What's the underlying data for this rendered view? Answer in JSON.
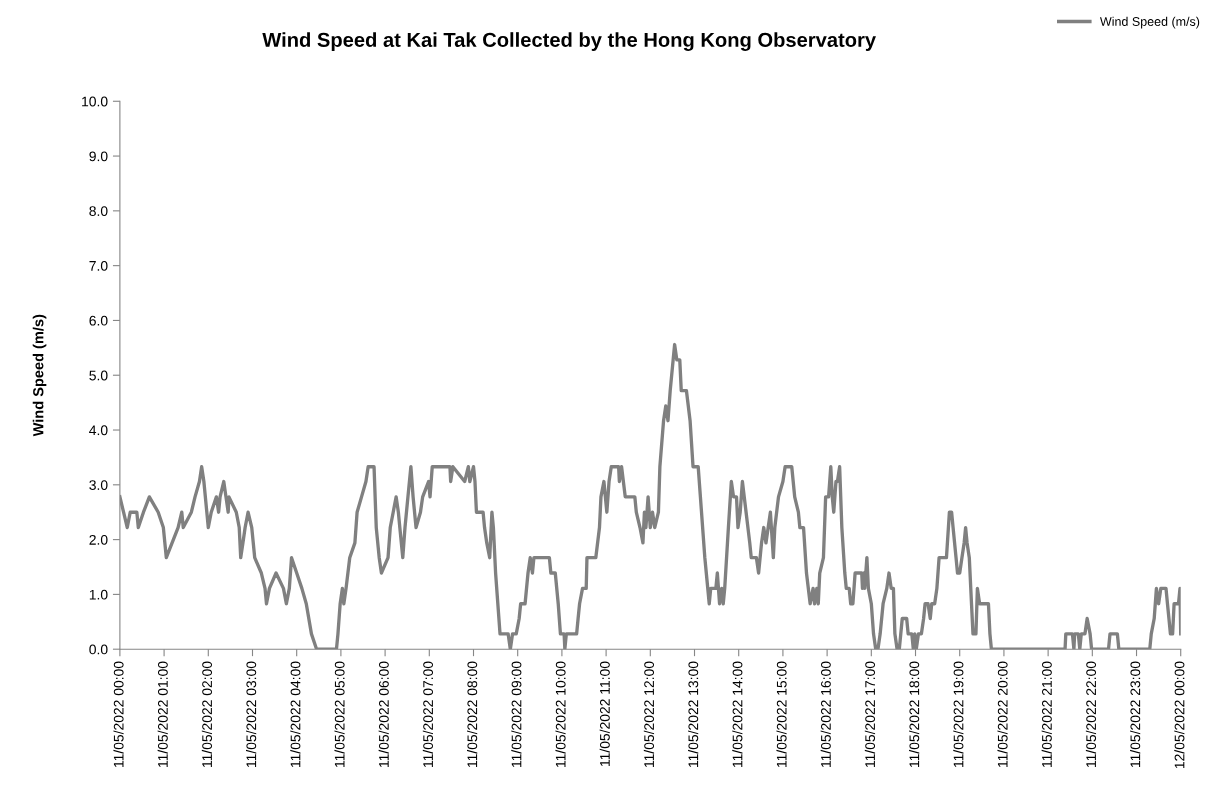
{
  "chart_data": {
    "type": "line",
    "title": "Wind Speed at Kai Tak Collected by the Hong Kong Observatory",
    "ylabel": "Wind Speed (m/s)",
    "xlim": [
      "2022-05-11T00:00",
      "2022-05-12T00:00"
    ],
    "ylim": [
      0,
      10
    ],
    "xticks": [
      {
        "value": "2022-05-11T00:00",
        "label": "11/05/2022 00:00"
      },
      {
        "value": "2022-05-11T01:00",
        "label": "11/05/2022 01:00"
      },
      {
        "value": "2022-05-11T02:00",
        "label": "11/05/2022 02:00"
      },
      {
        "value": "2022-05-11T03:00",
        "label": "11/05/2022 03:00"
      },
      {
        "value": "2022-05-11T04:00",
        "label": "11/05/2022 04:00"
      },
      {
        "value": "2022-05-11T05:00",
        "label": "11/05/2022 05:00"
      },
      {
        "value": "2022-05-11T06:00",
        "label": "11/05/2022 06:00"
      },
      {
        "value": "2022-05-11T07:00",
        "label": "11/05/2022 07:00"
      },
      {
        "value": "2022-05-11T08:00",
        "label": "11/05/2022 08:00"
      },
      {
        "value": "2022-05-11T09:00",
        "label": "11/05/2022 09:00"
      },
      {
        "value": "2022-05-11T10:00",
        "label": "11/05/2022 10:00"
      },
      {
        "value": "2022-05-11T11:00",
        "label": "11/05/2022 11:00"
      },
      {
        "value": "2022-05-11T12:00",
        "label": "11/05/2022 12:00"
      },
      {
        "value": "2022-05-11T13:00",
        "label": "11/05/2022 13:00"
      },
      {
        "value": "2022-05-11T14:00",
        "label": "11/05/2022 14:00"
      },
      {
        "value": "2022-05-11T15:00",
        "label": "11/05/2022 15:00"
      },
      {
        "value": "2022-05-11T16:00",
        "label": "11/05/2022 16:00"
      },
      {
        "value": "2022-05-11T17:00",
        "label": "11/05/2022 17:00"
      },
      {
        "value": "2022-05-11T18:00",
        "label": "11/05/2022 18:00"
      },
      {
        "value": "2022-05-11T19:00",
        "label": "11/05/2022 19:00"
      },
      {
        "value": "2022-05-11T20:00",
        "label": "11/05/2022 20:00"
      },
      {
        "value": "2022-05-11T21:00",
        "label": "11/05/2022 21:00"
      },
      {
        "value": "2022-05-11T22:00",
        "label": "11/05/2022 22:00"
      },
      {
        "value": "2022-05-11T23:00",
        "label": "11/05/2022 23:00"
      },
      {
        "value": "2022-05-12T00:00",
        "label": "12/05/2022 00:00"
      }
    ],
    "yticks": [
      {
        "value": 0,
        "label": "0.0"
      },
      {
        "value": 1,
        "label": "1.0"
      },
      {
        "value": 2,
        "label": "2.0"
      },
      {
        "value": 3,
        "label": "3.0"
      },
      {
        "value": 4,
        "label": "4.0"
      },
      {
        "value": 5,
        "label": "5.0"
      },
      {
        "value": 6,
        "label": "6.0"
      },
      {
        "value": 7,
        "label": "7.0"
      },
      {
        "value": 8,
        "label": "8.0"
      },
      {
        "value": 9,
        "label": "9.0"
      },
      {
        "value": 10,
        "label": "10.0"
      }
    ],
    "grid": false,
    "legend": "top right",
    "marker": "none",
    "line_style": "solid",
    "series": [
      {
        "name": "Wind Speed (m/s)",
        "color": "#808080",
        "x": [
          "2022-05-11T00:00",
          "2022-05-11T00:05",
          "2022-05-11T00:10",
          "2022-05-11T00:14",
          "2022-05-11T00:23",
          "2022-05-11T00:25",
          "2022-05-11T00:32",
          "2022-05-11T00:40",
          "2022-05-11T00:52",
          "2022-05-11T00:59",
          "2022-05-11T01:03",
          "2022-05-11T01:19",
          "2022-05-11T01:24",
          "2022-05-11T01:26",
          "2022-05-11T01:37",
          "2022-05-11T01:42",
          "2022-05-11T01:48",
          "2022-05-11T01:51",
          "2022-05-11T01:54",
          "2022-05-11T01:58",
          "2022-05-11T02:00",
          "2022-05-11T02:04",
          "2022-05-11T02:11",
          "2022-05-11T02:14",
          "2022-05-11T02:16",
          "2022-05-11T02:21",
          "2022-05-11T02:24",
          "2022-05-11T02:27",
          "2022-05-11T02:28",
          "2022-05-11T02:38",
          "2022-05-11T02:42",
          "2022-05-11T02:44",
          "2022-05-11T02:47",
          "2022-05-11T02:50",
          "2022-05-11T02:54",
          "2022-05-11T02:59",
          "2022-05-11T03:03",
          "2022-05-11T03:12",
          "2022-05-11T03:17",
          "2022-05-11T03:19",
          "2022-05-11T03:23",
          "2022-05-11T03:32",
          "2022-05-11T03:42",
          "2022-05-11T03:46",
          "2022-05-11T03:50",
          "2022-05-11T03:53",
          "2022-05-11T04:00",
          "2022-05-11T04:07",
          "2022-05-11T04:13",
          "2022-05-11T04:20",
          "2022-05-11T04:27",
          "2022-05-11T04:54",
          "2022-05-11T04:56",
          "2022-05-11T04:59",
          "2022-05-11T05:02",
          "2022-05-11T05:04",
          "2022-05-11T05:07",
          "2022-05-11T05:12",
          "2022-05-11T05:19",
          "2022-05-11T05:22",
          "2022-05-11T05:28",
          "2022-05-11T05:34",
          "2022-05-11T05:37",
          "2022-05-11T05:45",
          "2022-05-11T05:48",
          "2022-05-11T05:52",
          "2022-05-11T05:55",
          "2022-05-11T06:04",
          "2022-05-11T06:07",
          "2022-05-11T06:11",
          "2022-05-11T06:15",
          "2022-05-11T06:18",
          "2022-05-11T06:20",
          "2022-05-11T06:24",
          "2022-05-11T06:27",
          "2022-05-11T06:31",
          "2022-05-11T06:35",
          "2022-05-11T06:38",
          "2022-05-11T06:42",
          "2022-05-11T06:48",
          "2022-05-11T06:51",
          "2022-05-11T06:59",
          "2022-05-11T07:01",
          "2022-05-11T07:04",
          "2022-05-11T07:28",
          "2022-05-11T07:29",
          "2022-05-11T07:32",
          "2022-05-11T07:48",
          "2022-05-11T07:53",
          "2022-05-11T07:55",
          "2022-05-11T08:00",
          "2022-05-11T08:02",
          "2022-05-11T08:04",
          "2022-05-11T08:13",
          "2022-05-11T08:15",
          "2022-05-11T08:18",
          "2022-05-11T08:22",
          "2022-05-11T08:25",
          "2022-05-11T08:27",
          "2022-05-11T08:30",
          "2022-05-11T08:36",
          "2022-05-11T08:47",
          "2022-05-11T08:50",
          "2022-05-11T08:53",
          "2022-05-11T08:58",
          "2022-05-11T09:02",
          "2022-05-11T09:04",
          "2022-05-11T09:10",
          "2022-05-11T09:14",
          "2022-05-11T09:17",
          "2022-05-11T09:20",
          "2022-05-11T09:22",
          "2022-05-11T09:43",
          "2022-05-11T09:45",
          "2022-05-11T09:51",
          "2022-05-11T09:55",
          "2022-05-11T09:58",
          "2022-05-11T10:03",
          "2022-05-11T10:04",
          "2022-05-11T10:06",
          "2022-05-11T10:20",
          "2022-05-11T10:22",
          "2022-05-11T10:24",
          "2022-05-11T10:28",
          "2022-05-11T10:33",
          "2022-05-11T10:34",
          "2022-05-11T10:46",
          "2022-05-11T10:51",
          "2022-05-11T10:53",
          "2022-05-11T10:57",
          "2022-05-11T11:01",
          "2022-05-11T11:04",
          "2022-05-11T11:07",
          "2022-05-11T11:17",
          "2022-05-11T11:18",
          "2022-05-11T11:21",
          "2022-05-11T11:26",
          "2022-05-11T11:32",
          "2022-05-11T11:39",
          "2022-05-11T11:41",
          "2022-05-11T11:46",
          "2022-05-11T11:50",
          "2022-05-11T11:52",
          "2022-05-11T11:54",
          "2022-05-11T11:57",
          "2022-05-11T12:00",
          "2022-05-11T12:03",
          "2022-05-11T12:06",
          "2022-05-11T12:11",
          "2022-05-11T12:13",
          "2022-05-11T12:18",
          "2022-05-11T12:21",
          "2022-05-11T12:24",
          "2022-05-11T12:27",
          "2022-05-11T12:31",
          "2022-05-11T12:33",
          "2022-05-11T12:36",
          "2022-05-11T12:40",
          "2022-05-11T12:42",
          "2022-05-11T12:49",
          "2022-05-11T12:54",
          "2022-05-11T12:58",
          "2022-05-11T13:05",
          "2022-05-11T13:08",
          "2022-05-11T13:14",
          "2022-05-11T13:16",
          "2022-05-11T13:20",
          "2022-05-11T13:22",
          "2022-05-11T13:29",
          "2022-05-11T13:31",
          "2022-05-11T13:34",
          "2022-05-11T13:37",
          "2022-05-11T13:39",
          "2022-05-11T13:41",
          "2022-05-11T13:46",
          "2022-05-11T13:50",
          "2022-05-11T13:53",
          "2022-05-11T13:57",
          "2022-05-11T13:59",
          "2022-05-11T14:02",
          "2022-05-11T14:05",
          "2022-05-11T14:10",
          "2022-05-11T14:15",
          "2022-05-11T14:17",
          "2022-05-11T14:24",
          "2022-05-11T14:27",
          "2022-05-11T14:31",
          "2022-05-11T14:34",
          "2022-05-11T14:37",
          "2022-05-11T14:40",
          "2022-05-11T14:43",
          "2022-05-11T14:47",
          "2022-05-11T14:49",
          "2022-05-11T14:54",
          "2022-05-11T15:00",
          "2022-05-11T15:03",
          "2022-05-11T15:12",
          "2022-05-11T15:16",
          "2022-05-11T15:21",
          "2022-05-11T15:23",
          "2022-05-11T15:28",
          "2022-05-11T15:32",
          "2022-05-11T15:37",
          "2022-05-11T15:41",
          "2022-05-11T15:43",
          "2022-05-11T15:46",
          "2022-05-11T15:48",
          "2022-05-11T15:50",
          "2022-05-11T15:55",
          "2022-05-11T15:58",
          "2022-05-11T16:02",
          "2022-05-11T16:05",
          "2022-05-11T16:07",
          "2022-05-11T16:09",
          "2022-05-11T16:12",
          "2022-05-11T16:14",
          "2022-05-11T16:17",
          "2022-05-11T16:20",
          "2022-05-11T16:24",
          "2022-05-11T16:26",
          "2022-05-11T16:30",
          "2022-05-11T16:32",
          "2022-05-11T16:35",
          "2022-05-11T16:38",
          "2022-05-11T16:47",
          "2022-05-11T16:48",
          "2022-05-11T16:50",
          "2022-05-11T16:51",
          "2022-05-11T16:54",
          "2022-05-11T16:56",
          "2022-05-11T17:00",
          "2022-05-11T17:03",
          "2022-05-11T17:06",
          "2022-05-11T17:09",
          "2022-05-11T17:12",
          "2022-05-11T17:16",
          "2022-05-11T17:21",
          "2022-05-11T17:24",
          "2022-05-11T17:27",
          "2022-05-11T17:30",
          "2022-05-11T17:32",
          "2022-05-11T17:35",
          "2022-05-11T17:38",
          "2022-05-11T17:40",
          "2022-05-11T17:42",
          "2022-05-11T17:48",
          "2022-05-11T17:50",
          "2022-05-11T17:55",
          "2022-05-11T17:57",
          "2022-05-11T17:59",
          "2022-05-11T18:01",
          "2022-05-11T18:04",
          "2022-05-11T18:08",
          "2022-05-11T18:11",
          "2022-05-11T18:13",
          "2022-05-11T18:17",
          "2022-05-11T18:20",
          "2022-05-11T18:22",
          "2022-05-11T18:26",
          "2022-05-11T18:29",
          "2022-05-11T18:32",
          "2022-05-11T18:42",
          "2022-05-11T18:46",
          "2022-05-11T18:49",
          "2022-05-11T18:51",
          "2022-05-11T18:55",
          "2022-05-11T18:57",
          "2022-05-11T19:00",
          "2022-05-11T19:03",
          "2022-05-11T19:06",
          "2022-05-11T19:08",
          "2022-05-11T19:10",
          "2022-05-11T19:13",
          "2022-05-11T19:16",
          "2022-05-11T19:18",
          "2022-05-11T19:22",
          "2022-05-11T19:24",
          "2022-05-11T19:27",
          "2022-05-11T19:39",
          "2022-05-11T19:41",
          "2022-05-11T19:43",
          "2022-05-11T21:23",
          "2022-05-11T21:24",
          "2022-05-11T21:33",
          "2022-05-11T21:35",
          "2022-05-11T21:36",
          "2022-05-11T21:41",
          "2022-05-11T21:43",
          "2022-05-11T21:45",
          "2022-05-11T21:50",
          "2022-05-11T21:53",
          "2022-05-11T21:57",
          "2022-05-11T21:59",
          "2022-05-11T22:22",
          "2022-05-11T22:24",
          "2022-05-11T22:34",
          "2022-05-11T22:36",
          "2022-05-11T23:18",
          "2022-05-11T23:20",
          "2022-05-11T23:24",
          "2022-05-11T23:27",
          "2022-05-11T23:30",
          "2022-05-11T23:33",
          "2022-05-11T23:40",
          "2022-05-11T23:42",
          "2022-05-11T23:44",
          "2022-05-11T23:46",
          "2022-05-11T23:49",
          "2022-05-11T23:51",
          "2022-05-11T23:57",
          "2022-05-11T23:59",
          "2022-05-12T00:00"
        ],
        "values": [
          2.78,
          2.5,
          2.22,
          2.5,
          2.5,
          2.22,
          2.5,
          2.78,
          2.5,
          2.22,
          1.67,
          2.22,
          2.5,
          2.22,
          2.5,
          2.78,
          3.06,
          3.33,
          3.06,
          2.5,
          2.22,
          2.5,
          2.78,
          2.5,
          2.78,
          3.06,
          2.78,
          2.5,
          2.78,
          2.5,
          2.22,
          1.67,
          1.94,
          2.22,
          2.5,
          2.22,
          1.67,
          1.39,
          1.11,
          0.83,
          1.11,
          1.39,
          1.11,
          0.83,
          1.11,
          1.67,
          1.39,
          1.11,
          0.83,
          0.28,
          0,
          0,
          0.28,
          0.83,
          1.11,
          0.83,
          1.11,
          1.67,
          1.94,
          2.5,
          2.78,
          3.06,
          3.33,
          3.33,
          2.22,
          1.67,
          1.39,
          1.67,
          2.22,
          2.5,
          2.78,
          2.5,
          2.22,
          1.67,
          2.22,
          2.78,
          3.33,
          2.78,
          2.22,
          2.5,
          2.78,
          3.06,
          2.78,
          3.33,
          3.33,
          3.06,
          3.33,
          3.06,
          3.33,
          3.06,
          3.33,
          3.06,
          2.5,
          2.5,
          2.22,
          1.94,
          1.67,
          2.5,
          2.22,
          1.39,
          0.28,
          0.28,
          0,
          0.28,
          0.28,
          0.56,
          0.83,
          0.83,
          1.39,
          1.67,
          1.39,
          1.67,
          1.67,
          1.39,
          1.39,
          0.83,
          0.28,
          0.28,
          0,
          0.28,
          0.28,
          0.56,
          0.83,
          1.11,
          1.11,
          1.67,
          1.67,
          2.22,
          2.78,
          3.06,
          2.5,
          3.06,
          3.33,
          3.33,
          3.06,
          3.33,
          2.78,
          2.78,
          2.78,
          2.5,
          2.22,
          1.94,
          2.5,
          2.22,
          2.78,
          2.22,
          2.5,
          2.22,
          2.5,
          3.33,
          4.17,
          4.44,
          4.17,
          4.72,
          5.28,
          5.56,
          5.28,
          5.28,
          4.72,
          4.72,
          4.17,
          3.33,
          3.33,
          2.78,
          1.67,
          1.39,
          0.83,
          1.11,
          1.11,
          1.39,
          0.83,
          1.11,
          0.83,
          1.11,
          2.22,
          3.06,
          2.78,
          2.78,
          2.22,
          2.5,
          3.06,
          2.5,
          1.94,
          1.67,
          1.67,
          1.39,
          1.94,
          2.22,
          1.94,
          2.22,
          2.5,
          1.67,
          2.22,
          2.78,
          3.06,
          3.33,
          3.33,
          2.78,
          2.5,
          2.22,
          2.22,
          1.39,
          0.83,
          1.11,
          0.83,
          1.11,
          0.83,
          1.39,
          1.67,
          2.78,
          2.78,
          3.33,
          2.78,
          2.5,
          3.06,
          3.06,
          3.33,
          2.22,
          1.39,
          1.11,
          1.11,
          0.83,
          0.83,
          1.39,
          1.39,
          1.11,
          1.39,
          1.11,
          1.67,
          1.11,
          0.83,
          0.28,
          0,
          0,
          0.28,
          0.83,
          1.11,
          1.39,
          1.11,
          1.11,
          0.28,
          0,
          0,
          0.28,
          0.56,
          0.56,
          0.28,
          0.28,
          0,
          0.28,
          0,
          0.28,
          0.28,
          0.56,
          0.83,
          0.83,
          0.56,
          0.83,
          0.83,
          1.11,
          1.67,
          1.67,
          2.5,
          2.5,
          2.22,
          1.67,
          1.39,
          1.39,
          1.67,
          1.94,
          2.22,
          1.94,
          1.67,
          0.83,
          0.28,
          0.28,
          1.11,
          0.83,
          0.83,
          0.28,
          0,
          0,
          0.28,
          0.28,
          0,
          0.28,
          0.28,
          0,
          0.28,
          0.28,
          0.56,
          0.28,
          0,
          0,
          0.28,
          0.28,
          0,
          0,
          0.28,
          0.56,
          1.11,
          0.83,
          1.11,
          1.11,
          0.83,
          0.56,
          0.28,
          0.28,
          0.83,
          0.83,
          1.11,
          0.28
        ]
      }
    ]
  }
}
